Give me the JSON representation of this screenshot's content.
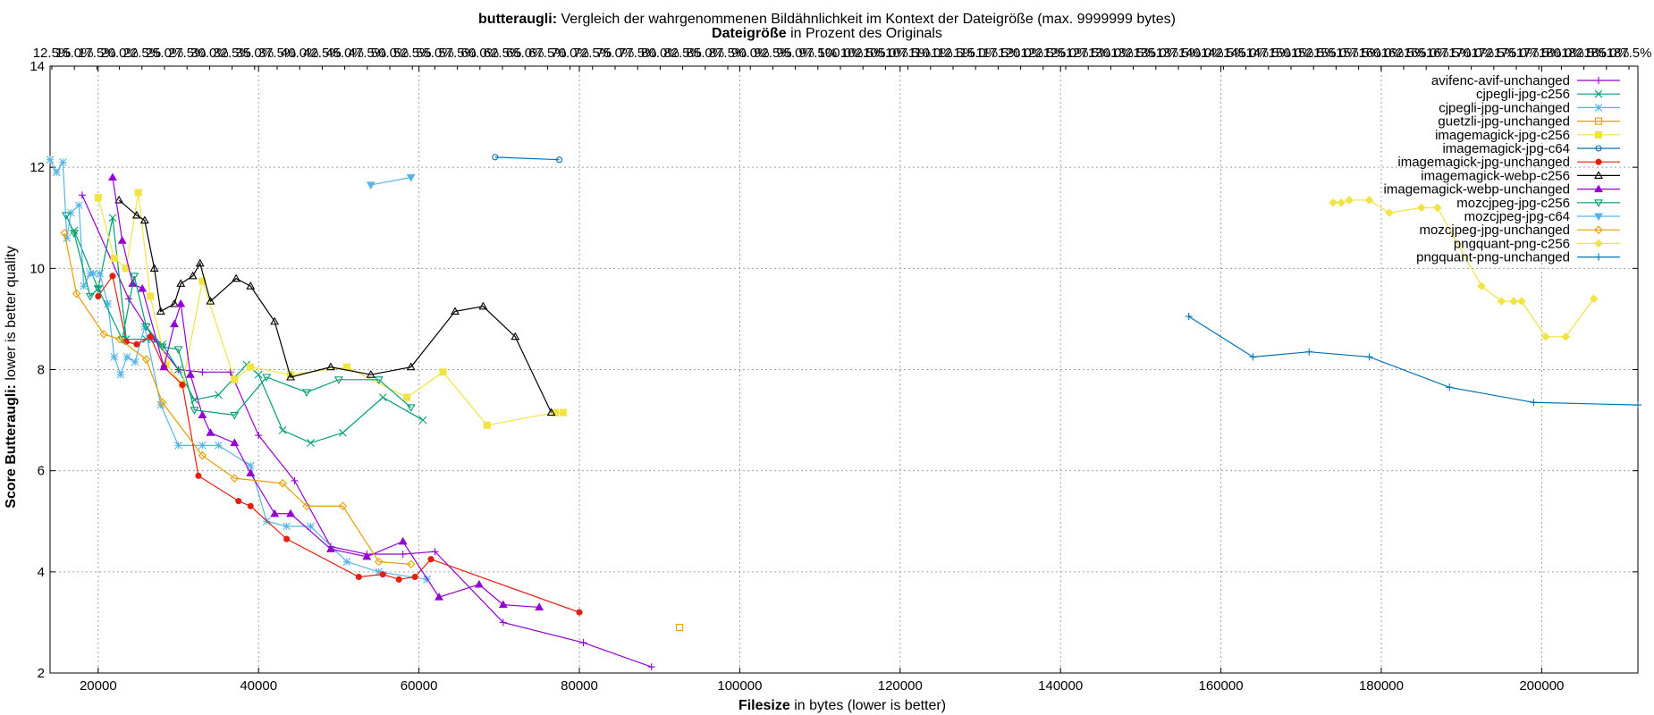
{
  "chart_data": {
    "type": "line",
    "title": {
      "prefix": "butteraugli:",
      "text": " Vergleich der wahrgenommenen Bildähnlichkeit im Kontext der Dateigröße (max. 9999999 bytes)"
    },
    "subtitle": {
      "prefix": "Dateigröße",
      "text": " in Prozent des Originals"
    },
    "xlabel": {
      "prefix": "Filesize",
      "text": " in bytes (lower is better)"
    },
    "ylabel": {
      "prefix": "Score Butteraugli:",
      "text": " lower is better quality"
    },
    "xlim": [
      14000,
      212000
    ],
    "ylim": [
      2,
      14
    ],
    "grid": true,
    "legend_position": "top-right",
    "x_ticks": [
      {
        "value": 20000,
        "label": "20000"
      },
      {
        "value": 40000,
        "label": "40000"
      },
      {
        "value": 60000,
        "label": "60000"
      },
      {
        "value": 80000,
        "label": "80000"
      },
      {
        "value": 100000,
        "label": "100000"
      },
      {
        "value": 120000,
        "label": "120000"
      },
      {
        "value": 140000,
        "label": "140000"
      },
      {
        "value": 160000,
        "label": "160000"
      },
      {
        "value": 180000,
        "label": "180000"
      },
      {
        "value": 200000,
        "label": "200000"
      }
    ],
    "y_ticks": [
      {
        "value": 2,
        "label": "2"
      },
      {
        "value": 4,
        "label": "4"
      },
      {
        "value": 6,
        "label": "6"
      },
      {
        "value": 8,
        "label": "8"
      },
      {
        "value": 10,
        "label": "10"
      },
      {
        "value": 12,
        "label": "12"
      },
      {
        "value": 14,
        "label": "14"
      }
    ],
    "x2_ticks": [
      "12.5%",
      "15.0%",
      "17.5%",
      "20.0%",
      "22.5%",
      "25.0%",
      "27.5%",
      "30.0%",
      "32.5%",
      "35.0%",
      "37.5%",
      "40.0%",
      "42.5%",
      "45.0%",
      "47.5%",
      "50.0%",
      "52.5%",
      "55.0%",
      "57.5%",
      "60.0%",
      "62.5%",
      "65.0%",
      "67.5%",
      "70.0%",
      "72.5%",
      "75.0%",
      "77.5%",
      "80.0%",
      "82.5%",
      "85.0%",
      "87.5%",
      "90.0%",
      "92.5%",
      "95.0%",
      "97.5%",
      "100.0%",
      "102.5%",
      "105.0%",
      "107.5%",
      "110.0%",
      "112.5%",
      "115.0%",
      "117.5%",
      "120.0%",
      "122.5%",
      "125.0%",
      "127.5%",
      "130.0%",
      "132.5%",
      "135.0%",
      "137.5%",
      "140.0%",
      "142.5%",
      "145.0%",
      "147.5%",
      "150.0%",
      "152.5%",
      "155.0%",
      "157.5%",
      "160.0%",
      "162.5%",
      "165.0%",
      "167.5%",
      "170.0%",
      "172.5%",
      "175.0%",
      "177.5%",
      "180.0%",
      "182.5%",
      "185.0%",
      "187.5%"
    ],
    "series": [
      {
        "name": "avifenc-avif-unchanged",
        "color": "#9400d3",
        "marker": "plus",
        "points": [
          [
            18000,
            11.45
          ],
          [
            23800,
            9.4
          ],
          [
            27000,
            8.6
          ],
          [
            30000,
            8.0
          ],
          [
            33000,
            7.95
          ],
          [
            36500,
            7.95
          ],
          [
            40000,
            6.7
          ],
          [
            44500,
            5.8
          ],
          [
            49000,
            4.5
          ],
          [
            53500,
            4.35
          ],
          [
            58000,
            4.35
          ],
          [
            62000,
            4.4
          ],
          [
            70500,
            3.0
          ],
          [
            80500,
            2.6
          ],
          [
            89000,
            2.12
          ]
        ]
      },
      {
        "name": "cjpegli-jpg-c256",
        "color": "#009e73",
        "marker": "x",
        "points": [
          [
            17000,
            10.75
          ],
          [
            20000,
            9.6
          ],
          [
            21800,
            11.0
          ],
          [
            23500,
            8.6
          ],
          [
            26000,
            8.6
          ],
          [
            28000,
            8.5
          ],
          [
            30000,
            8.0
          ],
          [
            32000,
            7.4
          ],
          [
            35000,
            7.5
          ],
          [
            38500,
            8.1
          ],
          [
            40000,
            7.9
          ],
          [
            43000,
            6.8
          ],
          [
            46500,
            6.55
          ],
          [
            50500,
            6.75
          ],
          [
            55500,
            7.45
          ],
          [
            60500,
            7.0
          ]
        ]
      },
      {
        "name": "cjpegli-jpg-unchanged",
        "color": "#56b4e9",
        "marker": "star",
        "points": [
          [
            14000,
            12.15
          ],
          [
            14800,
            11.9
          ],
          [
            15600,
            12.1
          ],
          [
            16100,
            10.6
          ],
          [
            16600,
            11.1
          ],
          [
            17600,
            11.25
          ],
          [
            18200,
            9.65
          ],
          [
            19000,
            9.9
          ],
          [
            19400,
            9.9
          ],
          [
            20200,
            9.9
          ],
          [
            21200,
            9.3
          ],
          [
            22000,
            8.25
          ],
          [
            22800,
            7.9
          ],
          [
            23600,
            8.25
          ],
          [
            24600,
            8.15
          ],
          [
            25800,
            8.85
          ],
          [
            27800,
            7.3
          ],
          [
            30000,
            6.5
          ],
          [
            33000,
            6.5
          ],
          [
            35000,
            6.5
          ],
          [
            39000,
            6.1
          ],
          [
            41000,
            5.0
          ],
          [
            43500,
            4.9
          ],
          [
            46500,
            4.9
          ],
          [
            51000,
            4.2
          ],
          [
            55000,
            4.0
          ],
          [
            61000,
            3.85
          ]
        ]
      },
      {
        "name": "guetzli-jpg-unchanged",
        "color": "#e69f00",
        "marker": "square",
        "points": [
          [
            92500,
            2.9
          ]
        ]
      },
      {
        "name": "imagemagick-jpg-c256",
        "color": "#f0e442",
        "marker": "fsquare",
        "points": [
          [
            20000,
            11.4
          ],
          [
            22000,
            10.2
          ],
          [
            23500,
            10.0
          ],
          [
            25000,
            11.5
          ],
          [
            26500,
            9.45
          ],
          [
            28500,
            8.1
          ],
          [
            30500,
            7.7
          ],
          [
            33000,
            9.75
          ],
          [
            37000,
            7.8
          ],
          [
            39000,
            8.05
          ],
          [
            44000,
            7.9
          ],
          [
            51000,
            8.05
          ],
          [
            58500,
            7.45
          ],
          [
            63000,
            7.95
          ],
          [
            68500,
            6.9
          ],
          [
            77000,
            7.15
          ],
          [
            78000,
            7.15
          ]
        ]
      },
      {
        "name": "imagemagick-jpg-c64",
        "color": "#0072b2",
        "marker": "circle",
        "points": [
          [
            69500,
            12.2
          ],
          [
            77500,
            12.15
          ]
        ]
      },
      {
        "name": "imagemagick-jpg-unchanged",
        "color": "#e51e10",
        "marker": "fcircle",
        "points": [
          [
            20000,
            9.45
          ],
          [
            21800,
            9.85
          ],
          [
            23500,
            8.55
          ],
          [
            24800,
            8.5
          ],
          [
            26500,
            8.65
          ],
          [
            28200,
            8.05
          ],
          [
            30500,
            7.7
          ],
          [
            32500,
            5.9
          ],
          [
            37500,
            5.4
          ],
          [
            39000,
            5.3
          ],
          [
            43500,
            4.65
          ],
          [
            52500,
            3.9
          ],
          [
            55500,
            3.95
          ],
          [
            57500,
            3.85
          ],
          [
            59500,
            3.9
          ],
          [
            61500,
            4.25
          ],
          [
            80000,
            3.2
          ]
        ]
      },
      {
        "name": "imagemagick-webp-c256",
        "color": "#000000",
        "marker": "triangle",
        "points": [
          [
            22600,
            11.35
          ],
          [
            24800,
            11.05
          ],
          [
            25800,
            10.95
          ],
          [
            27000,
            10.0
          ],
          [
            27800,
            9.15
          ],
          [
            29500,
            9.3
          ],
          [
            30300,
            9.7
          ],
          [
            31800,
            9.85
          ],
          [
            32700,
            10.1
          ],
          [
            34000,
            9.35
          ],
          [
            37200,
            9.8
          ],
          [
            39000,
            9.65
          ],
          [
            42000,
            8.95
          ],
          [
            44000,
            7.85
          ],
          [
            49000,
            8.05
          ],
          [
            54000,
            7.9
          ],
          [
            59000,
            8.05
          ],
          [
            64500,
            9.15
          ],
          [
            68000,
            9.25
          ],
          [
            72000,
            8.65
          ],
          [
            76500,
            7.15
          ]
        ]
      },
      {
        "name": "imagemagick-webp-unchanged",
        "color": "#9400d3",
        "marker": "ftriangle",
        "points": [
          [
            21800,
            11.8
          ],
          [
            23000,
            10.55
          ],
          [
            24300,
            9.7
          ],
          [
            25500,
            9.6
          ],
          [
            28200,
            8.05
          ],
          [
            29500,
            8.9
          ],
          [
            30300,
            9.3
          ],
          [
            31500,
            7.9
          ],
          [
            33000,
            7.1
          ],
          [
            34000,
            6.75
          ],
          [
            37000,
            6.55
          ],
          [
            39000,
            5.95
          ],
          [
            42000,
            5.15
          ],
          [
            44000,
            5.15
          ],
          [
            49000,
            4.45
          ],
          [
            53500,
            4.3
          ],
          [
            58000,
            4.6
          ],
          [
            62500,
            3.5
          ],
          [
            67500,
            3.75
          ],
          [
            70500,
            3.35
          ],
          [
            75000,
            3.3
          ]
        ]
      },
      {
        "name": "mozcjpeg-jpg-c256",
        "color": "#009e73",
        "marker": "invtriangle",
        "points": [
          [
            16000,
            11.05
          ],
          [
            17000,
            10.7
          ],
          [
            19000,
            9.45
          ],
          [
            20000,
            9.6
          ],
          [
            23000,
            8.6
          ],
          [
            24500,
            9.85
          ],
          [
            26000,
            8.85
          ],
          [
            28000,
            8.45
          ],
          [
            30000,
            8.4
          ],
          [
            32000,
            7.2
          ],
          [
            37000,
            7.1
          ],
          [
            41000,
            7.85
          ],
          [
            46000,
            7.55
          ],
          [
            50000,
            7.8
          ],
          [
            55000,
            7.8
          ],
          [
            59000,
            7.25
          ]
        ]
      },
      {
        "name": "mozcjpeg-jpg-c64",
        "color": "#56b4e9",
        "marker": "finvtriangle",
        "points": [
          [
            54000,
            11.65
          ],
          [
            59000,
            11.8
          ]
        ]
      },
      {
        "name": "mozcjpeg-jpg-unchanged",
        "color": "#e69f00",
        "marker": "diamond",
        "points": [
          [
            15800,
            10.7
          ],
          [
            17300,
            9.5
          ],
          [
            20700,
            8.7
          ],
          [
            22700,
            8.6
          ],
          [
            26000,
            8.2
          ],
          [
            28000,
            7.35
          ],
          [
            33000,
            6.3
          ],
          [
            37000,
            5.85
          ],
          [
            43000,
            5.75
          ],
          [
            46000,
            5.3
          ],
          [
            50500,
            5.3
          ],
          [
            55000,
            4.2
          ],
          [
            59000,
            4.15
          ]
        ]
      },
      {
        "name": "pngquant-png-c256",
        "color": "#f0e442",
        "marker": "fdiamond",
        "points": [
          [
            174000,
            11.3
          ],
          [
            175000,
            11.3
          ],
          [
            176000,
            11.35
          ],
          [
            178500,
            11.35
          ],
          [
            181000,
            11.1
          ],
          [
            185000,
            11.2
          ],
          [
            187000,
            11.2
          ],
          [
            192500,
            9.65
          ],
          [
            195000,
            9.35
          ],
          [
            196500,
            9.35
          ],
          [
            197500,
            9.35
          ],
          [
            200500,
            8.65
          ],
          [
            203000,
            8.65
          ],
          [
            206500,
            9.4
          ]
        ]
      },
      {
        "name": "pngquant-png-unchanged",
        "color": "#0072b2",
        "marker": "plus",
        "points": [
          [
            156000,
            9.05
          ],
          [
            164000,
            8.25
          ],
          [
            171000,
            8.35
          ],
          [
            178500,
            8.25
          ],
          [
            188500,
            7.65
          ],
          [
            199000,
            7.35
          ],
          [
            212000,
            7.3
          ]
        ]
      }
    ]
  }
}
